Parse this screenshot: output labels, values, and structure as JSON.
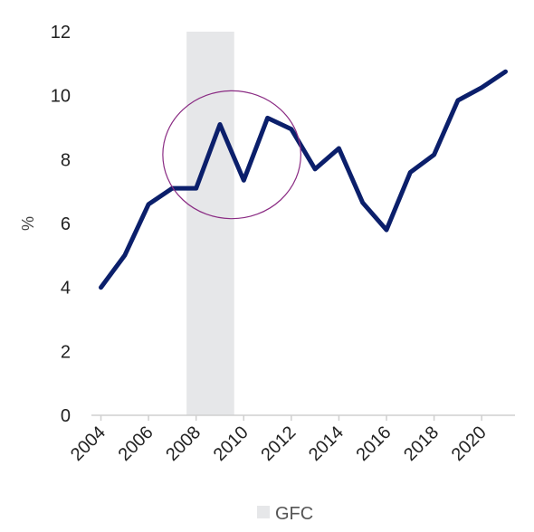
{
  "chart_data": {
    "type": "line",
    "title": "",
    "xlabel": "",
    "ylabel": "%",
    "ylim": [
      0,
      12
    ],
    "yticks": [
      "0",
      "2",
      "4",
      "6",
      "8",
      "10",
      "12"
    ],
    "xticks": [
      "2004",
      "2006",
      "2008",
      "2010",
      "2012",
      "2014",
      "2016",
      "2018",
      "2020"
    ],
    "xlim": [
      2003.6,
      2021.4
    ],
    "series": [
      {
        "x": [
          2004,
          2005,
          2006,
          2007,
          2008,
          2009,
          2010,
          2011,
          2012,
          2013,
          2014,
          2015,
          2016,
          2017,
          2018,
          2019,
          2020,
          2021
        ],
        "values": [
          4.0,
          5.0,
          6.6,
          7.1,
          7.1,
          9.1,
          7.35,
          9.3,
          8.95,
          7.7,
          8.35,
          6.65,
          5.8,
          7.6,
          8.15,
          9.85,
          10.25,
          10.75
        ]
      }
    ],
    "shaded_region": {
      "label": "GFC",
      "x_start": 2007.6,
      "x_end": 2009.6
    },
    "annotation_circle": {
      "cx": 2009.5,
      "cy": 8.15,
      "rx_years": 2.9,
      "ry_units": 2.0
    },
    "legend": {
      "placement": "bottom-center",
      "entries": [
        "GFC"
      ]
    },
    "grid": false,
    "colors": {
      "line": "#0b1f6b",
      "shade": "#e6e7e9",
      "circle": "#8a2b83",
      "axis": "#cfcfcf"
    }
  }
}
